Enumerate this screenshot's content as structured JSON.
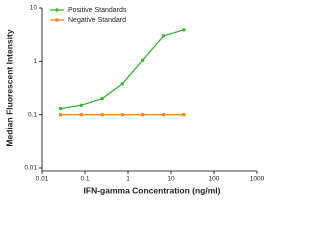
{
  "chart_data": {
    "type": "line",
    "x_label": "IFN-gamma Concentration (ng/ml)",
    "y_label": "Median Fluorescent Intensity",
    "xlog": true,
    "ylog": true,
    "xlim": [
      0.01,
      1000
    ],
    "xticks": [
      0.01,
      0.1,
      1,
      10,
      100,
      1000
    ],
    "ylim": [
      0.01,
      10
    ],
    "yticks": [
      0.01,
      0.1,
      1,
      10
    ],
    "legend": "upper left",
    "series": [
      {
        "name": "Positive Standards",
        "color": "#3cb43c",
        "marker": "circle",
        "x": [
          0.027,
          0.082,
          0.25,
          0.74,
          2.2,
          6.7,
          20
        ],
        "values": [
          0.13,
          0.15,
          0.2,
          0.38,
          1.05,
          3.0,
          3.9
        ]
      },
      {
        "name": "Negative Standard",
        "color": "#f08a24",
        "marker": "square",
        "x": [
          0.027,
          0.082,
          0.25,
          0.74,
          2.2,
          6.7,
          20
        ],
        "values": [
          0.1,
          0.1,
          0.1,
          0.1,
          0.1,
          0.1,
          0.1
        ]
      }
    ]
  }
}
